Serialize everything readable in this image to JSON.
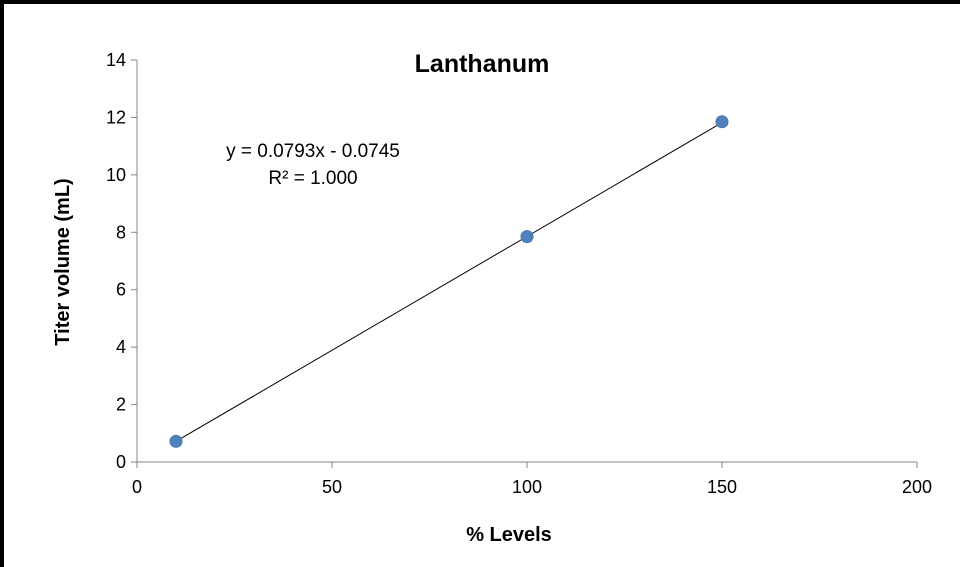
{
  "chart_data": {
    "type": "scatter",
    "title": "Lanthanum",
    "xlabel": "% Levels",
    "ylabel": "Titer volume (mL)",
    "xlim": [
      0,
      200
    ],
    "ylim": [
      0,
      14
    ],
    "xticks": [
      0,
      50,
      100,
      150,
      200
    ],
    "yticks": [
      0,
      2,
      4,
      6,
      8,
      10,
      12,
      14
    ],
    "grid": false,
    "legend": "none",
    "series": [
      {
        "x": [
          10,
          100,
          150
        ],
        "y": [
          0.72,
          7.85,
          11.85
        ],
        "color": "#4f81bd"
      }
    ],
    "trendline": {
      "type": "linear",
      "slope": 0.0793,
      "intercept": -0.0745,
      "x_range": [
        10,
        150
      ],
      "equation_label": "y = 0.0793x - 0.0745",
      "r2_label": "R² = 1.000"
    }
  }
}
